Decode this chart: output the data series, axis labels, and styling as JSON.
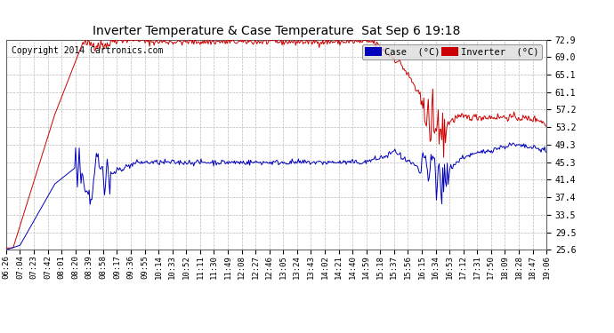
{
  "title": "Inverter Temperature & Case Temperature  Sat Sep 6 19:18",
  "copyright": "Copyright 2014 Cartronics.com",
  "yticks": [
    25.6,
    29.5,
    33.5,
    37.4,
    41.4,
    45.3,
    49.3,
    53.2,
    57.2,
    61.1,
    65.1,
    69.0,
    72.9
  ],
  "xtick_labels": [
    "06:26",
    "07:04",
    "07:23",
    "07:42",
    "08:01",
    "08:20",
    "08:39",
    "08:58",
    "09:17",
    "09:36",
    "09:55",
    "10:14",
    "10:33",
    "10:52",
    "11:11",
    "11:30",
    "11:49",
    "12:08",
    "12:27",
    "12:46",
    "13:05",
    "13:24",
    "13:43",
    "14:02",
    "14:21",
    "14:40",
    "14:59",
    "15:18",
    "15:37",
    "15:56",
    "16:15",
    "16:34",
    "16:53",
    "17:12",
    "17:31",
    "17:50",
    "18:09",
    "18:28",
    "18:47",
    "19:06"
  ],
  "legend_case_color": "#0000bb",
  "legend_inv_color": "#cc0000",
  "legend_case_label": "Case  (°C)",
  "legend_inv_label": "Inverter  (°C)",
  "bg_color": "#ffffff",
  "plot_bg": "#ffffff",
  "grid_color": "#bbbbbb",
  "line_red": "#cc0000",
  "line_blue": "#0000bb",
  "ylim_min": 25.6,
  "ylim_max": 72.9,
  "title_fontsize": 10,
  "tick_fontsize": 7,
  "copyright_fontsize": 7
}
